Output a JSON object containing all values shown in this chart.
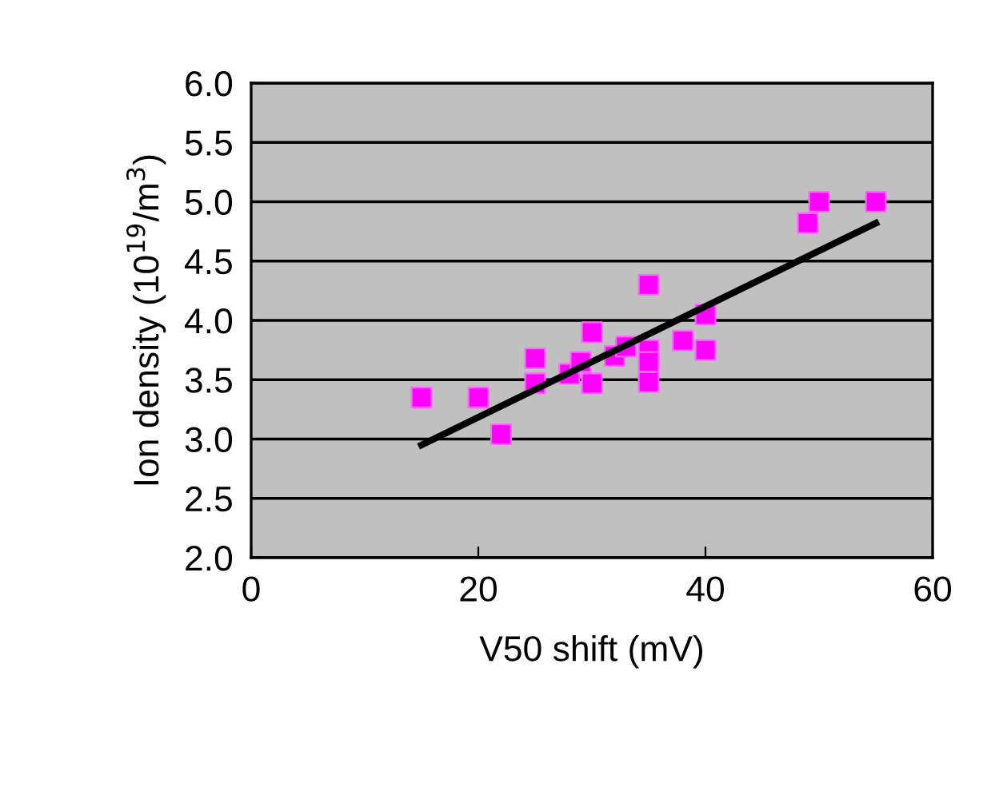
{
  "chart_data": {
    "type": "scatter",
    "xlabel": "V50 shift (mV)",
    "ylabel": "Ion density (10$^{19}$/m$^{3}$)",
    "xlim": [
      0,
      60
    ],
    "xticks": [
      0,
      20,
      40,
      60
    ],
    "ylim": [
      2.0,
      6.0
    ],
    "yticks": [
      {
        "value": 2.0,
        "label": "2.0"
      },
      {
        "value": 2.5,
        "label": "2.5"
      },
      {
        "value": 3.0,
        "label": "3.0"
      },
      {
        "value": 3.5,
        "label": "3.5"
      },
      {
        "value": 4.0,
        "label": "4.0"
      },
      {
        "value": 4.5,
        "label": "4.5"
      },
      {
        "value": 5.0,
        "label": "5.0"
      },
      {
        "value": 5.5,
        "label": "5.5"
      },
      {
        "value": 6.0,
        "label": "6.0"
      }
    ],
    "grid": "y",
    "legend": false,
    "series": [
      {
        "color": "#ff00ff",
        "marker": "square",
        "x": [
          15,
          20,
          22,
          25,
          25,
          28,
          29,
          30,
          30,
          32,
          33,
          35,
          35,
          35,
          35,
          38,
          40,
          40,
          49,
          50,
          55
        ],
        "values": [
          3.35,
          3.35,
          3.04,
          3.68,
          3.47,
          3.55,
          3.65,
          3.9,
          3.47,
          3.7,
          3.78,
          4.3,
          3.75,
          3.65,
          3.48,
          3.83,
          4.05,
          3.75,
          4.82,
          5.0,
          5.0
        ]
      },
      {
        "type": "line",
        "color": "#000000",
        "marker": "none",
        "line_style": "solid",
        "x": [
          15,
          55
        ],
        "values": [
          2.95,
          4.82
        ]
      }
    ]
  }
}
